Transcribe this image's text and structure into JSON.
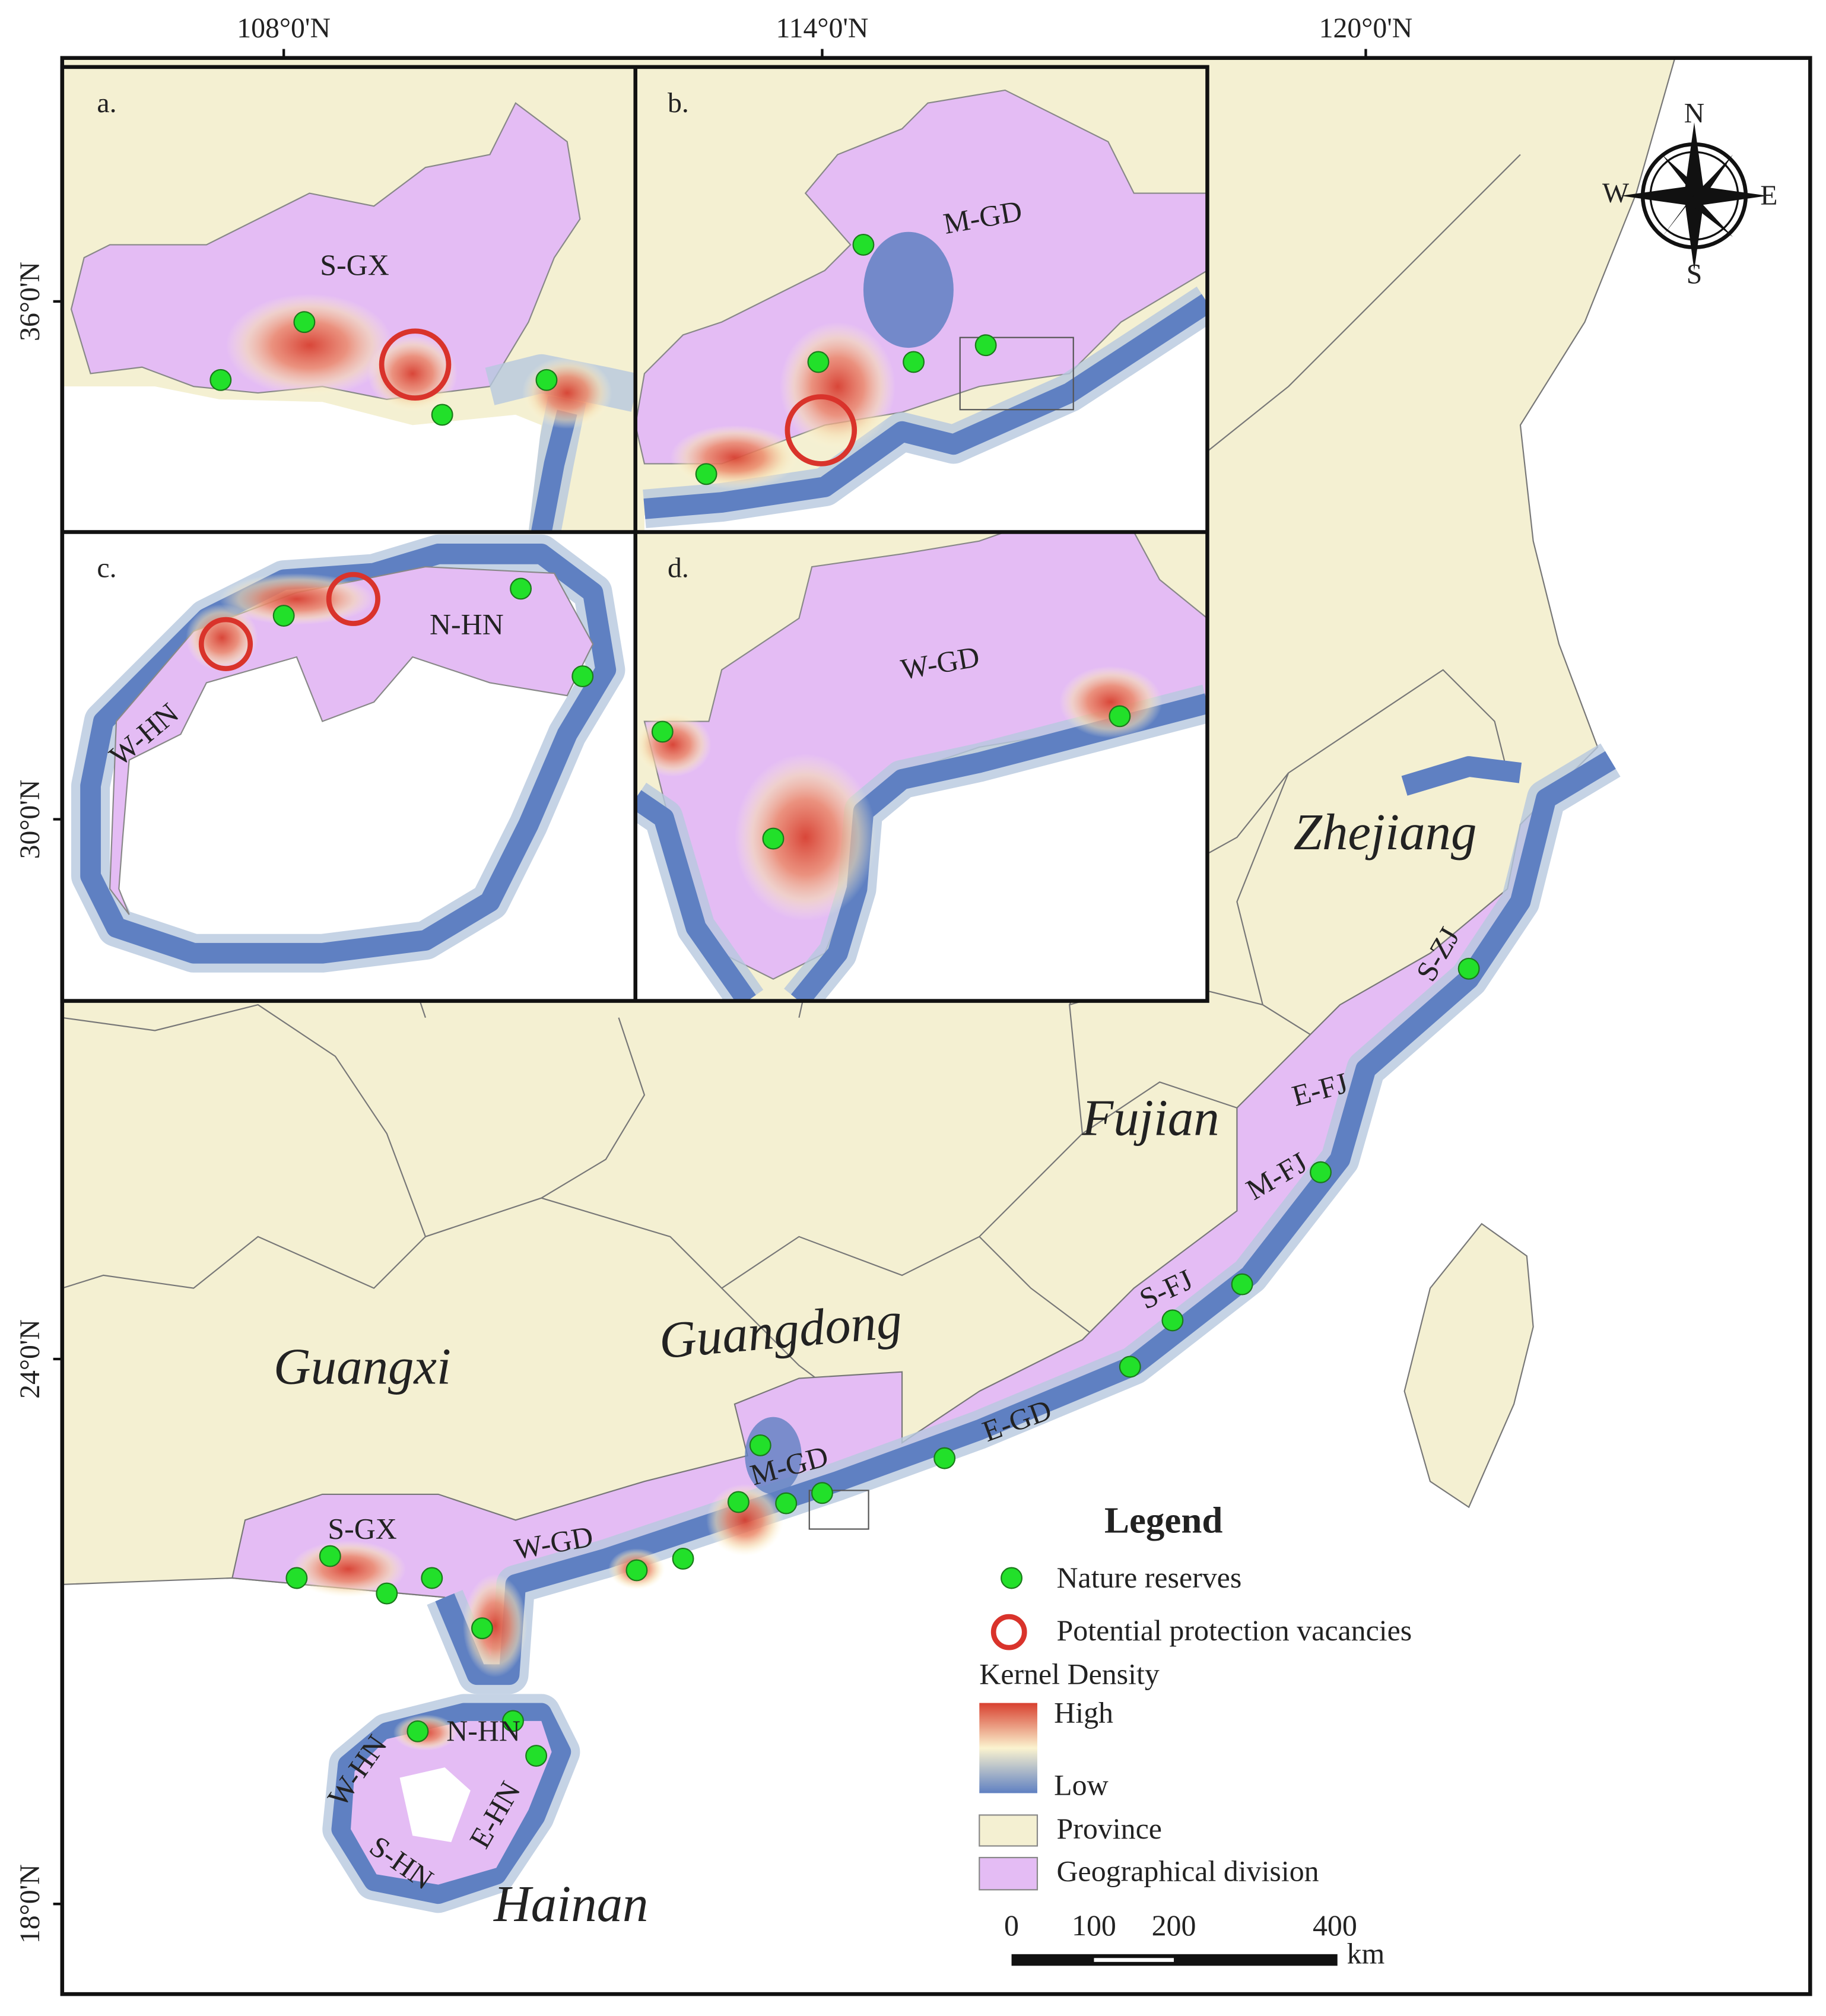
{
  "axes": {
    "top": [
      "108°0'N",
      "114°0'N",
      "120°0'N"
    ],
    "left": [
      "36°0'N",
      "30°0'N",
      "24°0'N",
      "18°0'N"
    ]
  },
  "compass": {
    "north": "N",
    "south": "S",
    "east": "E",
    "west": "W"
  },
  "insets": [
    {
      "label": "a.",
      "divisions": [
        "S-GX"
      ]
    },
    {
      "label": "b.",
      "divisions": [
        "M-GD"
      ]
    },
    {
      "label": "c.",
      "divisions": [
        "N-HN",
        "W-HN"
      ]
    },
    {
      "label": "d.",
      "divisions": [
        "W-GD"
      ]
    }
  ],
  "main_map": {
    "provinces": [
      "Zhejiang",
      "Fujian",
      "Guangdong",
      "Guangxi",
      "Hainan"
    ],
    "divisions": [
      "S-ZJ",
      "E-FJ",
      "M-FJ",
      "S-FJ",
      "E-GD",
      "M-GD",
      "W-GD",
      "S-GX",
      "N-HN",
      "W-HN",
      "E-HN",
      "S-HN"
    ]
  },
  "legend": {
    "title": "Legend",
    "items": [
      "Nature reserves",
      "Potential protection vacancies"
    ],
    "kernel_density": {
      "title": "Kernel Density",
      "high": "High",
      "low": "Low"
    },
    "layers": [
      "Province",
      "Geographical division"
    ]
  },
  "scale_bar": {
    "labels": [
      "0",
      "100",
      "200",
      "400"
    ],
    "unit": "km"
  }
}
